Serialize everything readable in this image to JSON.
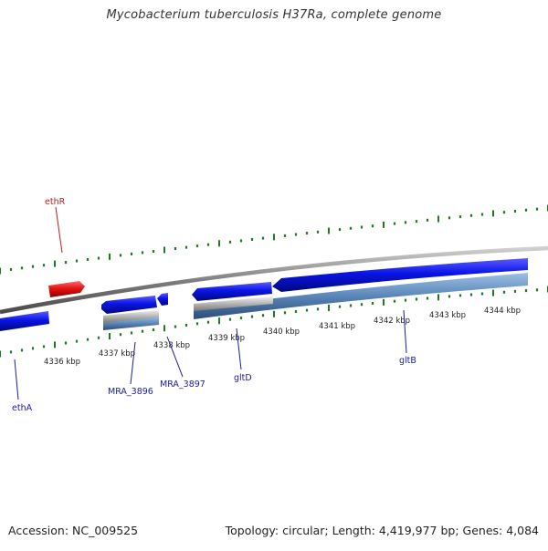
{
  "title": "Mycobacterium tuberculosis H37Ra, complete genome",
  "footer": {
    "accession": "Accession: NC_009525",
    "summary": "Topology: circular; Length: 4,419,977 bp; Genes: 4,084"
  },
  "colors": {
    "background": "#ffffff",
    "backbone": "#808080",
    "tick": "#1f7a1f",
    "forward_gene": "#0a14e6",
    "reverse_gene": "#e61414",
    "cds_feature": "#5a86b8",
    "rna_feature": "#b4b4b4",
    "forward_label": "#1a1aa8",
    "reverse_label": "#c01a1a"
  },
  "scale_labels": [
    "4336 kbp",
    "4337 kbp",
    "4338 kbp",
    "4339 kbp",
    "4340 kbp",
    "4341 kbp",
    "4342 kbp",
    "4343 kbp",
    "4344 kbp"
  ],
  "genes": [
    {
      "name": "ethR",
      "strand": "reverse"
    },
    {
      "name": "ethA",
      "strand": "forward"
    },
    {
      "name": "MRA_3896",
      "strand": "forward"
    },
    {
      "name": "MRA_3897",
      "strand": "forward"
    },
    {
      "name": "gltD",
      "strand": "forward"
    },
    {
      "name": "gltB",
      "strand": "forward"
    }
  ]
}
